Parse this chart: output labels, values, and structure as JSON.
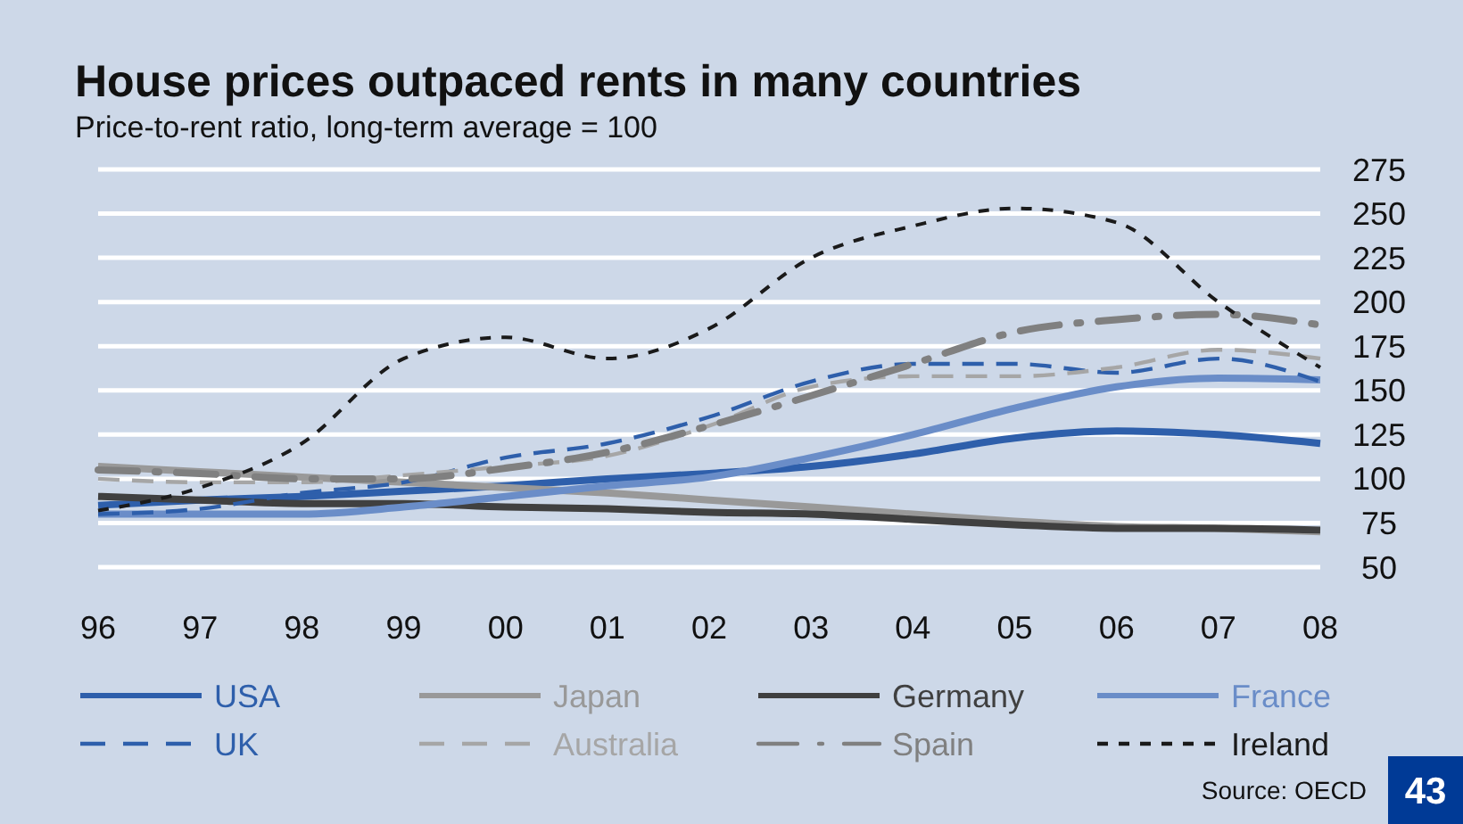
{
  "chart_data": {
    "type": "line",
    "title": "House prices outpaced rents in many countries",
    "subtitle": "Price-to-rent ratio, long-term average = 100",
    "x": [
      1996,
      1997,
      1998,
      1999,
      2000,
      2001,
      2002,
      2003,
      2004,
      2005,
      2006,
      2007,
      2008
    ],
    "xlim": [
      1996,
      2008
    ],
    "xticks": [
      {
        "value": 1996,
        "label": "96"
      },
      {
        "value": 1997,
        "label": "97"
      },
      {
        "value": 1998,
        "label": "98"
      },
      {
        "value": 1999,
        "label": "99"
      },
      {
        "value": 2000,
        "label": "00"
      },
      {
        "value": 2001,
        "label": "01"
      },
      {
        "value": 2002,
        "label": "02"
      },
      {
        "value": 2003,
        "label": "03"
      },
      {
        "value": 2004,
        "label": "04"
      },
      {
        "value": 2005,
        "label": "05"
      },
      {
        "value": 2006,
        "label": "06"
      },
      {
        "value": 2007,
        "label": "07"
      },
      {
        "value": 2008,
        "label": "08"
      }
    ],
    "ylim": [
      50,
      275
    ],
    "yticks": [
      50,
      75,
      100,
      125,
      150,
      175,
      200,
      225,
      250,
      275
    ],
    "grid": "y",
    "legend": "bottom",
    "marker": "none",
    "series": [
      {
        "name": "USA",
        "color": "#2e5fab",
        "line_style": "solid",
        "values": [
          85,
          88,
          90,
          93,
          96,
          100,
          103,
          107,
          114,
          123,
          127,
          125,
          120
        ]
      },
      {
        "name": "Japan",
        "color": "#999999",
        "line_style": "solid",
        "values": [
          107,
          104,
          101,
          98,
          95,
          92,
          88,
          84,
          80,
          76,
          73,
          72,
          70
        ]
      },
      {
        "name": "Germany",
        "color": "#404040",
        "line_style": "solid",
        "values": [
          90,
          88,
          86,
          86,
          84,
          83,
          81,
          80,
          77,
          74,
          72,
          72,
          71
        ]
      },
      {
        "name": "France",
        "color": "#6a8dc8",
        "line_style": "solid",
        "values": [
          80,
          80,
          80,
          84,
          90,
          96,
          101,
          112,
          125,
          140,
          152,
          157,
          156
        ]
      },
      {
        "name": "UK",
        "color": "#2e5fab",
        "line_style": "dashed",
        "values": [
          80,
          83,
          92,
          98,
          112,
          120,
          135,
          155,
          165,
          165,
          160,
          168,
          155
        ]
      },
      {
        "name": "Australia",
        "color": "#a6a6a6",
        "line_style": "dashed",
        "values": [
          100,
          98,
          98,
          102,
          107,
          113,
          130,
          152,
          158,
          158,
          163,
          173,
          168
        ]
      },
      {
        "name": "Spain",
        "color": "#808080",
        "line_style": "dashdot",
        "values": [
          105,
          103,
          100,
          100,
          106,
          115,
          130,
          147,
          165,
          183,
          190,
          193,
          187
        ]
      },
      {
        "name": "Ireland",
        "color": "#1a1a1a",
        "line_style": "dotted",
        "values": [
          82,
          95,
          120,
          168,
          180,
          168,
          185,
          225,
          243,
          253,
          245,
          200,
          163
        ]
      }
    ],
    "annotations": [
      "Source: OECD",
      "43"
    ]
  }
}
